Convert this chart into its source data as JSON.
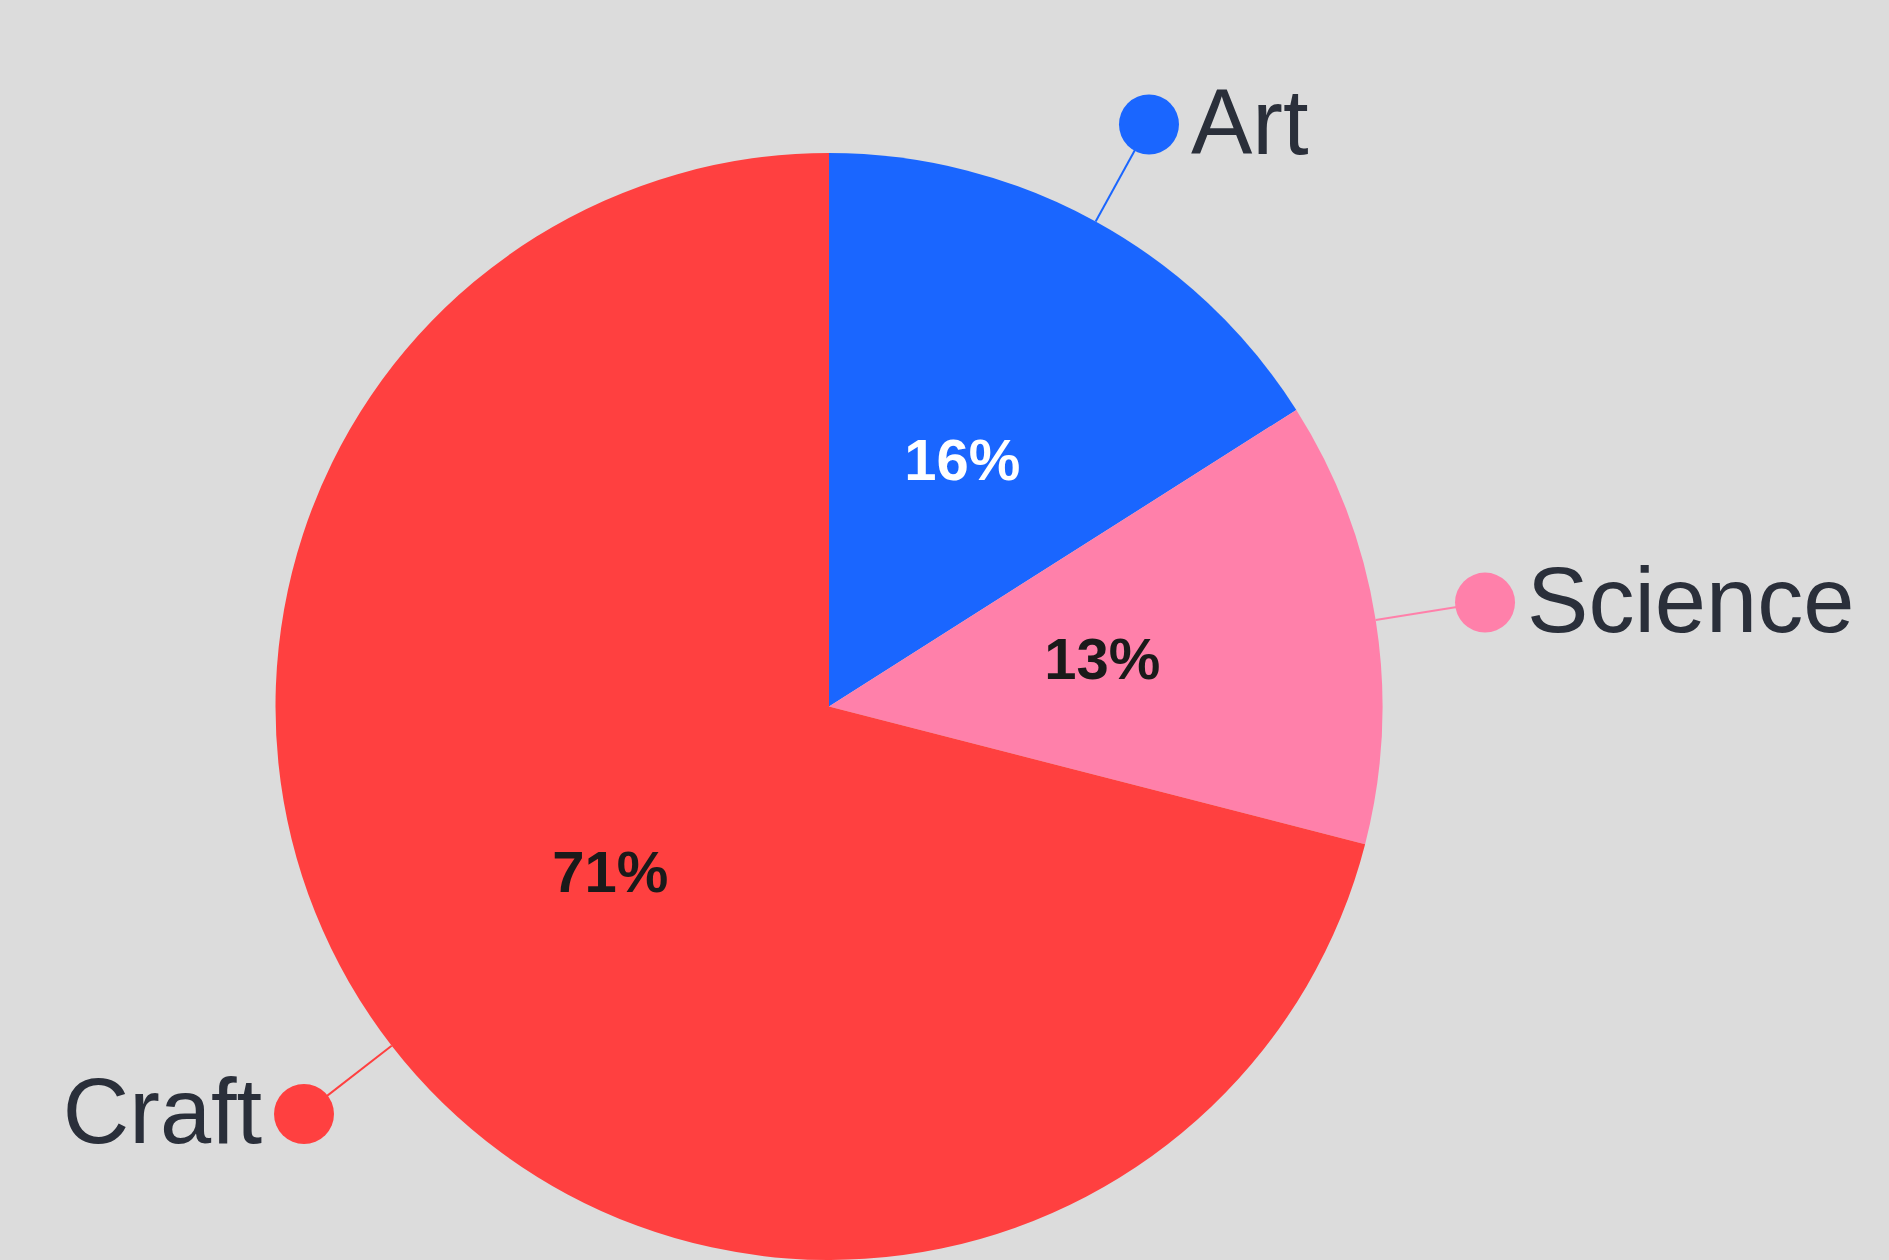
{
  "chart_data": {
    "type": "pie",
    "categories": [
      "Art",
      "Science",
      "Craft"
    ],
    "values": [
      16,
      13,
      71
    ],
    "colors": [
      "#1a66ff",
      "#ff80aa",
      "#ff4040"
    ],
    "value_labels": [
      "16%",
      "13%",
      "71%"
    ],
    "legend": "right"
  }
}
